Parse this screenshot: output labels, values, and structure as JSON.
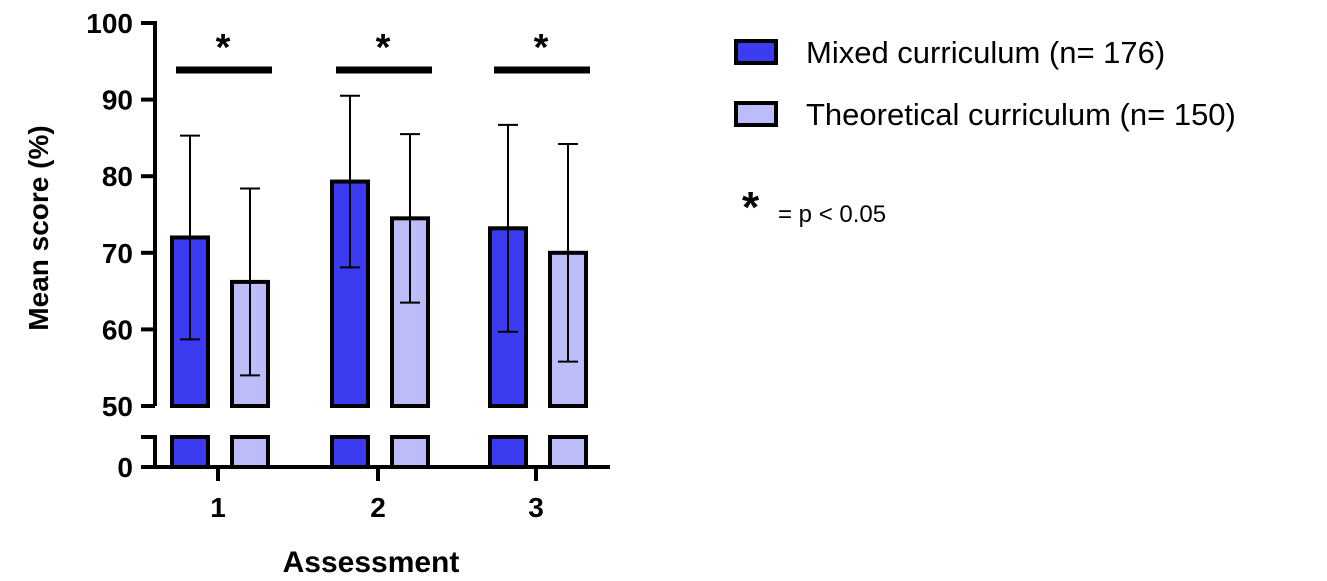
{
  "chart_data": {
    "type": "bar",
    "xlabel": "Assessment",
    "ylabel": "Mean score (%)",
    "categories": [
      "1",
      "2",
      "3"
    ],
    "y_ticks": [
      "0",
      "50",
      "60",
      "70",
      "80",
      "90",
      "100"
    ],
    "ylim": [
      0,
      100
    ],
    "axis_break": [
      0,
      50
    ],
    "legend_position": "top-right",
    "series": [
      {
        "name": "Mixed curriculum (n= 176)",
        "color": "#3b3bf0",
        "values": [
          72.0,
          79.3,
          73.2
        ],
        "error": [
          13.3,
          11.2,
          13.5
        ]
      },
      {
        "name": "Theoretical curriculum (n= 150)",
        "color": "#bcbcf8",
        "values": [
          66.2,
          74.5,
          70.0
        ],
        "error": [
          12.2,
          11.0,
          14.2
        ]
      }
    ],
    "significance": {
      "marker": "*",
      "groups": [
        "1",
        "2",
        "3"
      ],
      "legend_suffix": "= p < 0.05"
    }
  }
}
